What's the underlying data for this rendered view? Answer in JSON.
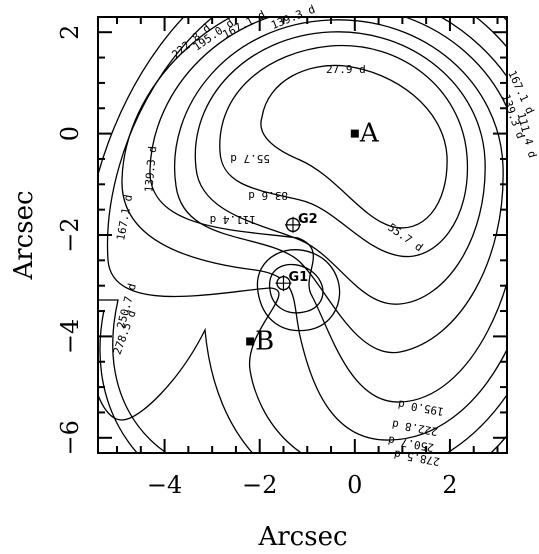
{
  "chart_data": {
    "type": "contour",
    "xlabel": "Arcsec",
    "ylabel": "Arcsec",
    "xlim": [
      -5.4,
      3.2
    ],
    "ylim": [
      -6.3,
      2.3
    ],
    "xticks": [
      -4,
      -2,
      0,
      2
    ],
    "yticks": [
      2,
      0,
      -2,
      -4,
      -6
    ],
    "contour_unit": "d",
    "contour_levels": [
      {
        "value": 27.9,
        "label": "27.9 d"
      },
      {
        "value": 55.7,
        "label": "55.7 d"
      },
      {
        "value": 83.6,
        "label": "83.6 d"
      },
      {
        "value": 111.4,
        "label": "111.4 d"
      },
      {
        "value": 139.3,
        "label": "139.3 d"
      },
      {
        "value": 167.1,
        "label": "167.1 d"
      },
      {
        "value": 195.0,
        "label": "195.0 d"
      },
      {
        "value": 222.8,
        "label": "222.8 d"
      },
      {
        "value": 250.7,
        "label": "250.7 d"
      },
      {
        "value": 278.5,
        "label": "278.5 d"
      }
    ],
    "images": [
      {
        "name": "A",
        "x": 0.0,
        "y": 0.0
      },
      {
        "name": "B",
        "x": -2.2,
        "y": -4.1
      }
    ],
    "galaxies": [
      {
        "name": "G1",
        "x": -1.5,
        "y": -2.95
      },
      {
        "name": "G2",
        "x": -1.3,
        "y": -1.8
      }
    ]
  }
}
